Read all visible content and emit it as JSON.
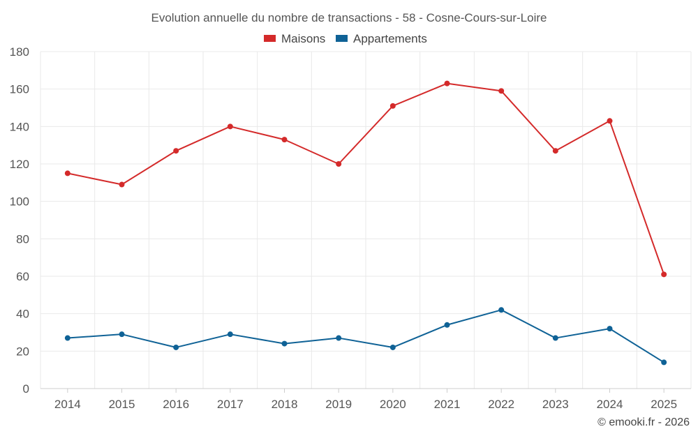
{
  "chart_data": {
    "type": "line",
    "title": "Evolution annuelle du nombre de transactions - 58 - Cosne-Cours-sur-Loire",
    "categories": [
      "2014",
      "2015",
      "2016",
      "2017",
      "2018",
      "2019",
      "2020",
      "2021",
      "2022",
      "2023",
      "2024",
      "2025"
    ],
    "series": [
      {
        "name": "Maisons",
        "color": "#d42a2a",
        "values": [
          115,
          109,
          127,
          140,
          133,
          120,
          151,
          163,
          159,
          127,
          143,
          61
        ]
      },
      {
        "name": "Appartements",
        "color": "#0f6296",
        "values": [
          27,
          29,
          22,
          29,
          24,
          27,
          22,
          34,
          42,
          27,
          32,
          14
        ]
      }
    ],
    "ylim": [
      0,
      180
    ],
    "yticks": [
      0,
      20,
      40,
      60,
      80,
      100,
      120,
      140,
      160,
      180
    ],
    "xlabel": "",
    "ylabel": "",
    "grid": true,
    "legend_position": "top-center"
  },
  "credit": "© emooki.fr - 2026"
}
